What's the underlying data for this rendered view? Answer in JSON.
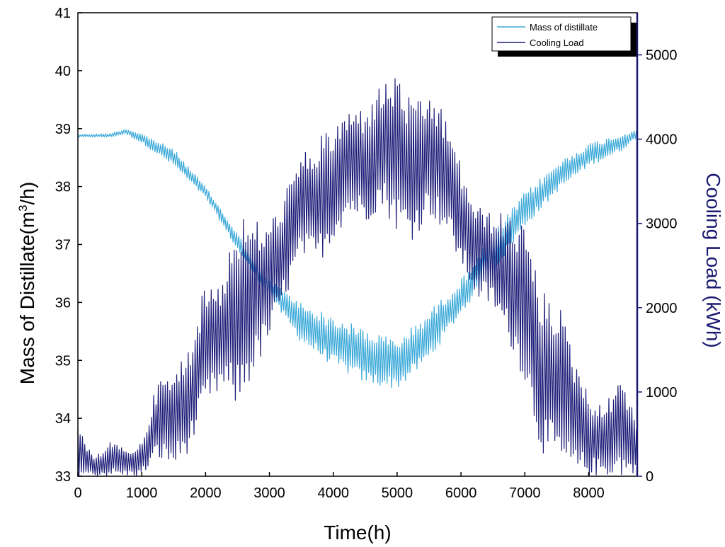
{
  "chart_data": {
    "type": "line",
    "title": "",
    "xlabel": "Time(h)",
    "ylabel_left": "Mass of Distillate(m³/h)",
    "ylabel_left_parts": {
      "pre": "Mass of Distillate(m",
      "sup": "3",
      "post": "/h)"
    },
    "ylabel_right": "Cooling Load (kWh)",
    "xlim": [
      0,
      8760
    ],
    "ylim_left": [
      33,
      41
    ],
    "ylim_right": [
      0,
      5500
    ],
    "xticks": [
      0,
      1000,
      2000,
      3000,
      4000,
      5000,
      6000,
      7000,
      8000
    ],
    "yticks_left": [
      33,
      34,
      35,
      36,
      37,
      38,
      39,
      40,
      41
    ],
    "yticks_right": [
      0,
      1000,
      2000,
      3000,
      4000,
      5000
    ],
    "legend_position": "top-right",
    "series": [
      {
        "name": "Mass of distillate",
        "axis": "left",
        "color": "#3BA9D8",
        "x": [
          0,
          500,
          750,
          1000,
          1500,
          2000,
          2500,
          3000,
          3500,
          4000,
          4500,
          5000,
          5500,
          6000,
          6500,
          7000,
          7500,
          8000,
          8500,
          8760
        ],
        "upper": [
          38.9,
          38.92,
          39.0,
          38.92,
          38.65,
          38.0,
          37.2,
          36.4,
          36.0,
          35.75,
          35.55,
          35.35,
          35.85,
          36.4,
          37.2,
          37.9,
          38.4,
          38.75,
          38.9,
          39.0
        ],
        "lower": [
          38.85,
          38.85,
          38.9,
          38.75,
          38.35,
          37.8,
          36.9,
          36.1,
          35.3,
          34.9,
          34.6,
          34.5,
          35.0,
          35.8,
          36.5,
          37.3,
          37.9,
          38.35,
          38.6,
          38.85
        ]
      },
      {
        "name": "Cooling Load",
        "axis": "right",
        "color": "#1F1F7A",
        "x": [
          0,
          250,
          500,
          750,
          1000,
          1250,
          1500,
          1750,
          2000,
          2250,
          2500,
          2750,
          3000,
          3250,
          3500,
          3750,
          4000,
          4250,
          4500,
          4750,
          5000,
          5250,
          5500,
          5750,
          6000,
          6250,
          6500,
          6750,
          7000,
          7250,
          7500,
          7750,
          8000,
          8250,
          8500,
          8760
        ],
        "upper": [
          600,
          200,
          450,
          300,
          400,
          1150,
          1200,
          1600,
          2300,
          2350,
          3100,
          3050,
          3000,
          3400,
          3800,
          4000,
          4150,
          4350,
          4400,
          4650,
          4800,
          4400,
          4550,
          4300,
          3700,
          3200,
          3150,
          3100,
          3000,
          2200,
          2150,
          1500,
          1000,
          800,
          1300,
          600
        ],
        "lower": [
          0,
          0,
          0,
          0,
          0,
          200,
          100,
          300,
          800,
          1000,
          800,
          1200,
          1600,
          2100,
          2600,
          2500,
          2800,
          3100,
          3000,
          3200,
          2900,
          2800,
          3100,
          2900,
          2500,
          2100,
          2000,
          1600,
          1100,
          300,
          100,
          0,
          0,
          0,
          0,
          0
        ]
      }
    ]
  }
}
